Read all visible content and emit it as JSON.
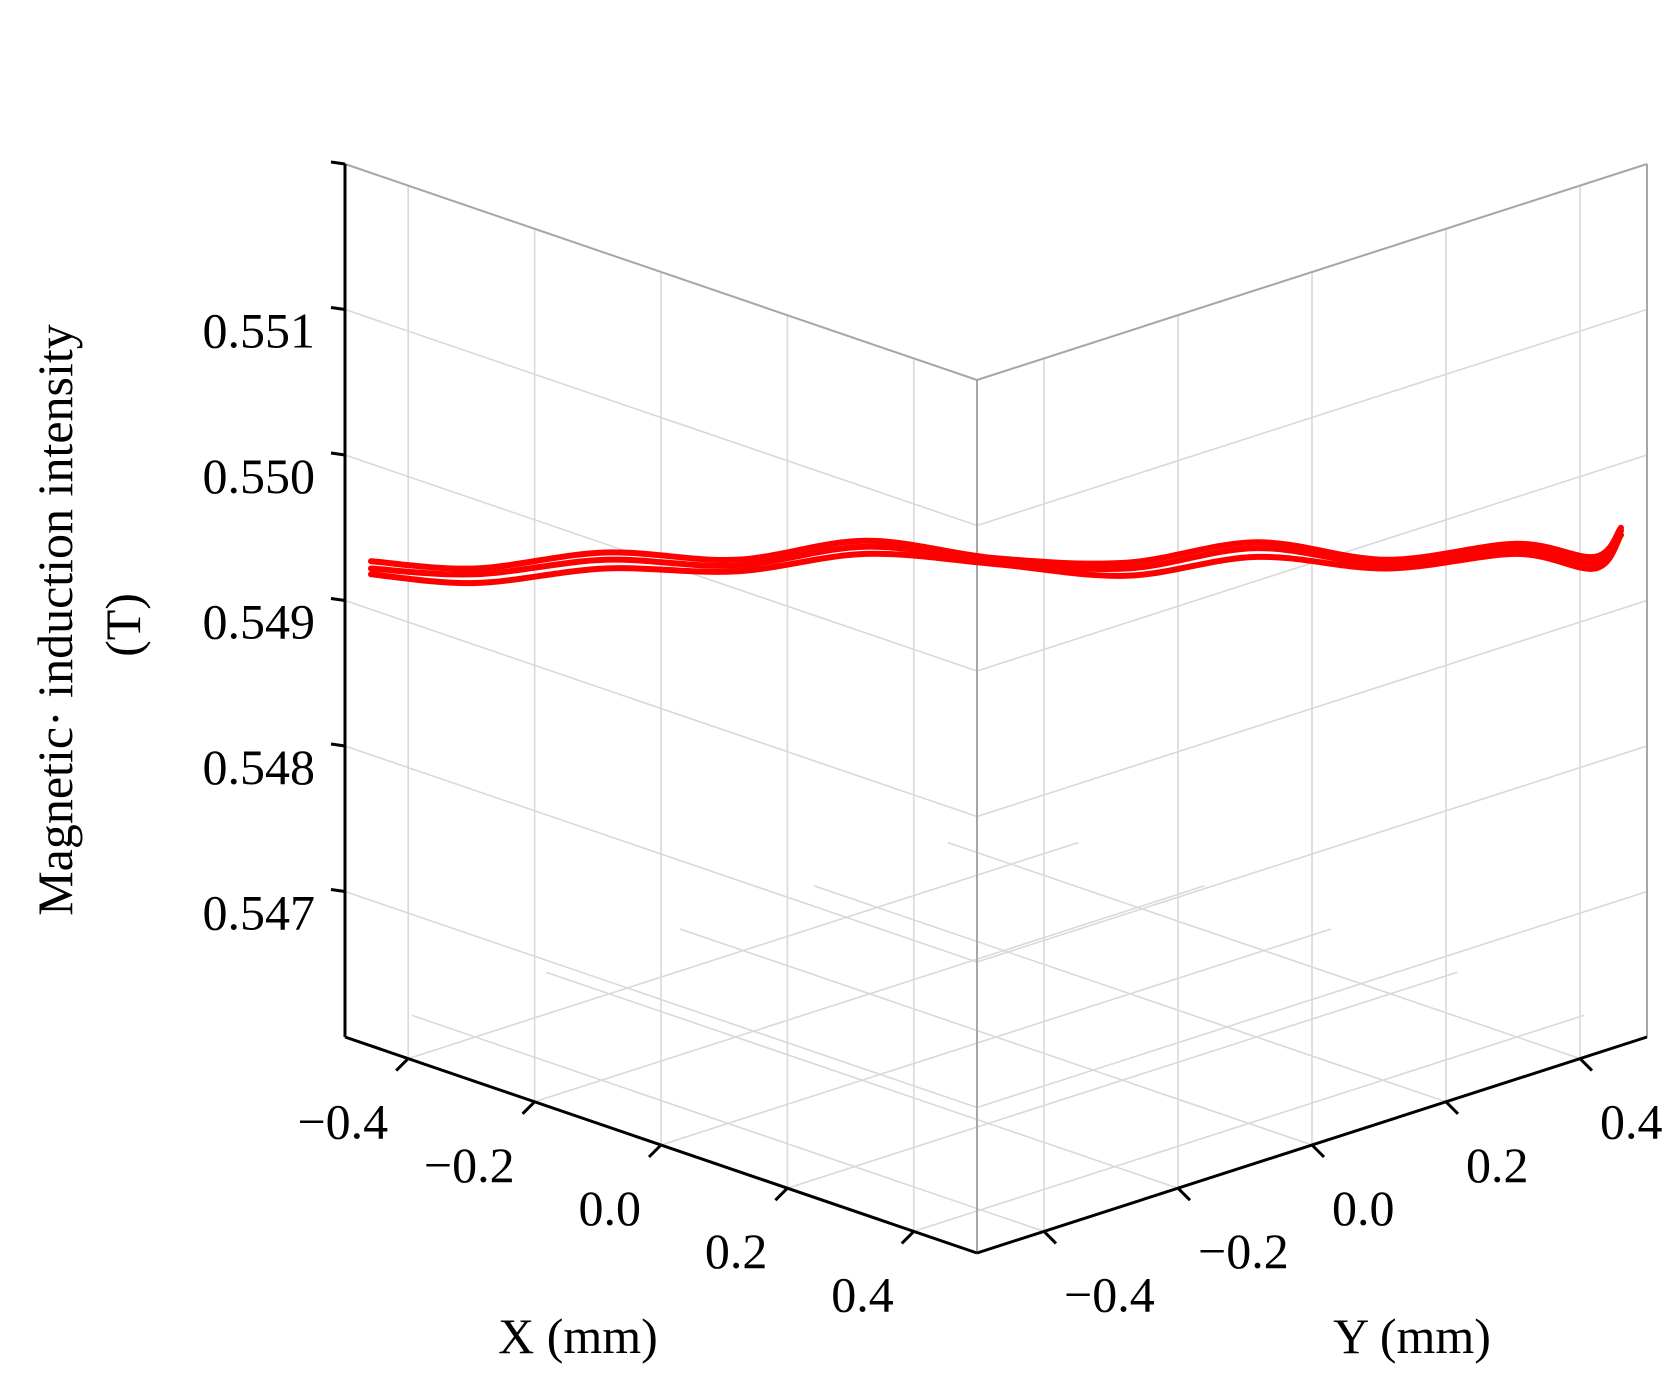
{
  "chart_data": {
    "type": "line3d",
    "title": "",
    "xlabel": "X (mm)",
    "ylabel": "Y (mm)",
    "zlabel": "Magnetic· induction intensity",
    "zlabel_unit": "(T)",
    "xlim": [
      -0.5,
      0.5
    ],
    "ylim": [
      -0.5,
      0.5
    ],
    "zlim": [
      0.546,
      0.552
    ],
    "x_ticks": [
      "−0.4",
      "−0.2",
      "0.0",
      "0.2",
      "0.4"
    ],
    "x_tick_values": [
      -0.4,
      -0.2,
      0.0,
      0.2,
      0.4
    ],
    "y_ticks": [
      "−0.4",
      "−0.2",
      "0.0",
      "0.2",
      "0.4"
    ],
    "y_tick_values": [
      -0.4,
      -0.2,
      0.0,
      0.2,
      0.4
    ],
    "z_ticks": [
      "0.547",
      "0.548",
      "0.549",
      "0.550",
      "0.551"
    ],
    "z_tick_values": [
      0.547,
      0.548,
      0.549,
      0.55,
      0.551
    ],
    "grid": true,
    "color": "#ff0000",
    "series": [
      {
        "points": [
          [
            -0.48,
            -0.48,
            0.54918
          ],
          [
            -0.4,
            -0.4,
            0.54912
          ],
          [
            -0.3,
            -0.3,
            0.54922
          ],
          [
            -0.2,
            -0.2,
            0.5492
          ],
          [
            -0.1,
            -0.1,
            0.54932
          ],
          [
            0.0,
            0.0,
            0.54925
          ],
          [
            0.1,
            0.1,
            0.54917
          ],
          [
            0.2,
            0.2,
            0.5493
          ],
          [
            0.3,
            0.3,
            0.54922
          ],
          [
            0.4,
            0.4,
            0.54932
          ],
          [
            0.46,
            0.46,
            0.54922
          ],
          [
            0.48,
            0.48,
            0.54945
          ]
        ]
      },
      {
        "points": [
          [
            -0.48,
            -0.48,
            0.54922
          ],
          [
            -0.4,
            -0.4,
            0.54918
          ],
          [
            -0.3,
            -0.3,
            0.54928
          ],
          [
            -0.2,
            -0.2,
            0.54924
          ],
          [
            -0.1,
            -0.1,
            0.54937
          ],
          [
            0.0,
            0.0,
            0.54927
          ],
          [
            0.1,
            0.1,
            0.54922
          ],
          [
            0.2,
            0.2,
            0.54936
          ],
          [
            0.3,
            0.3,
            0.54925
          ],
          [
            0.4,
            0.4,
            0.54936
          ],
          [
            0.46,
            0.46,
            0.54926
          ],
          [
            0.48,
            0.48,
            0.54948
          ]
        ]
      },
      {
        "points": [
          [
            -0.48,
            -0.48,
            0.54927
          ],
          [
            -0.4,
            -0.4,
            0.54922
          ],
          [
            -0.3,
            -0.3,
            0.54933
          ],
          [
            -0.2,
            -0.2,
            0.54928
          ],
          [
            -0.1,
            -0.1,
            0.54941
          ],
          [
            0.0,
            0.0,
            0.54929
          ],
          [
            0.1,
            0.1,
            0.54926
          ],
          [
            0.2,
            0.2,
            0.5494
          ],
          [
            0.3,
            0.3,
            0.54928
          ],
          [
            0.4,
            0.4,
            0.54939
          ],
          [
            0.46,
            0.46,
            0.5493
          ],
          [
            0.48,
            0.48,
            0.5495
          ]
        ]
      }
    ]
  }
}
